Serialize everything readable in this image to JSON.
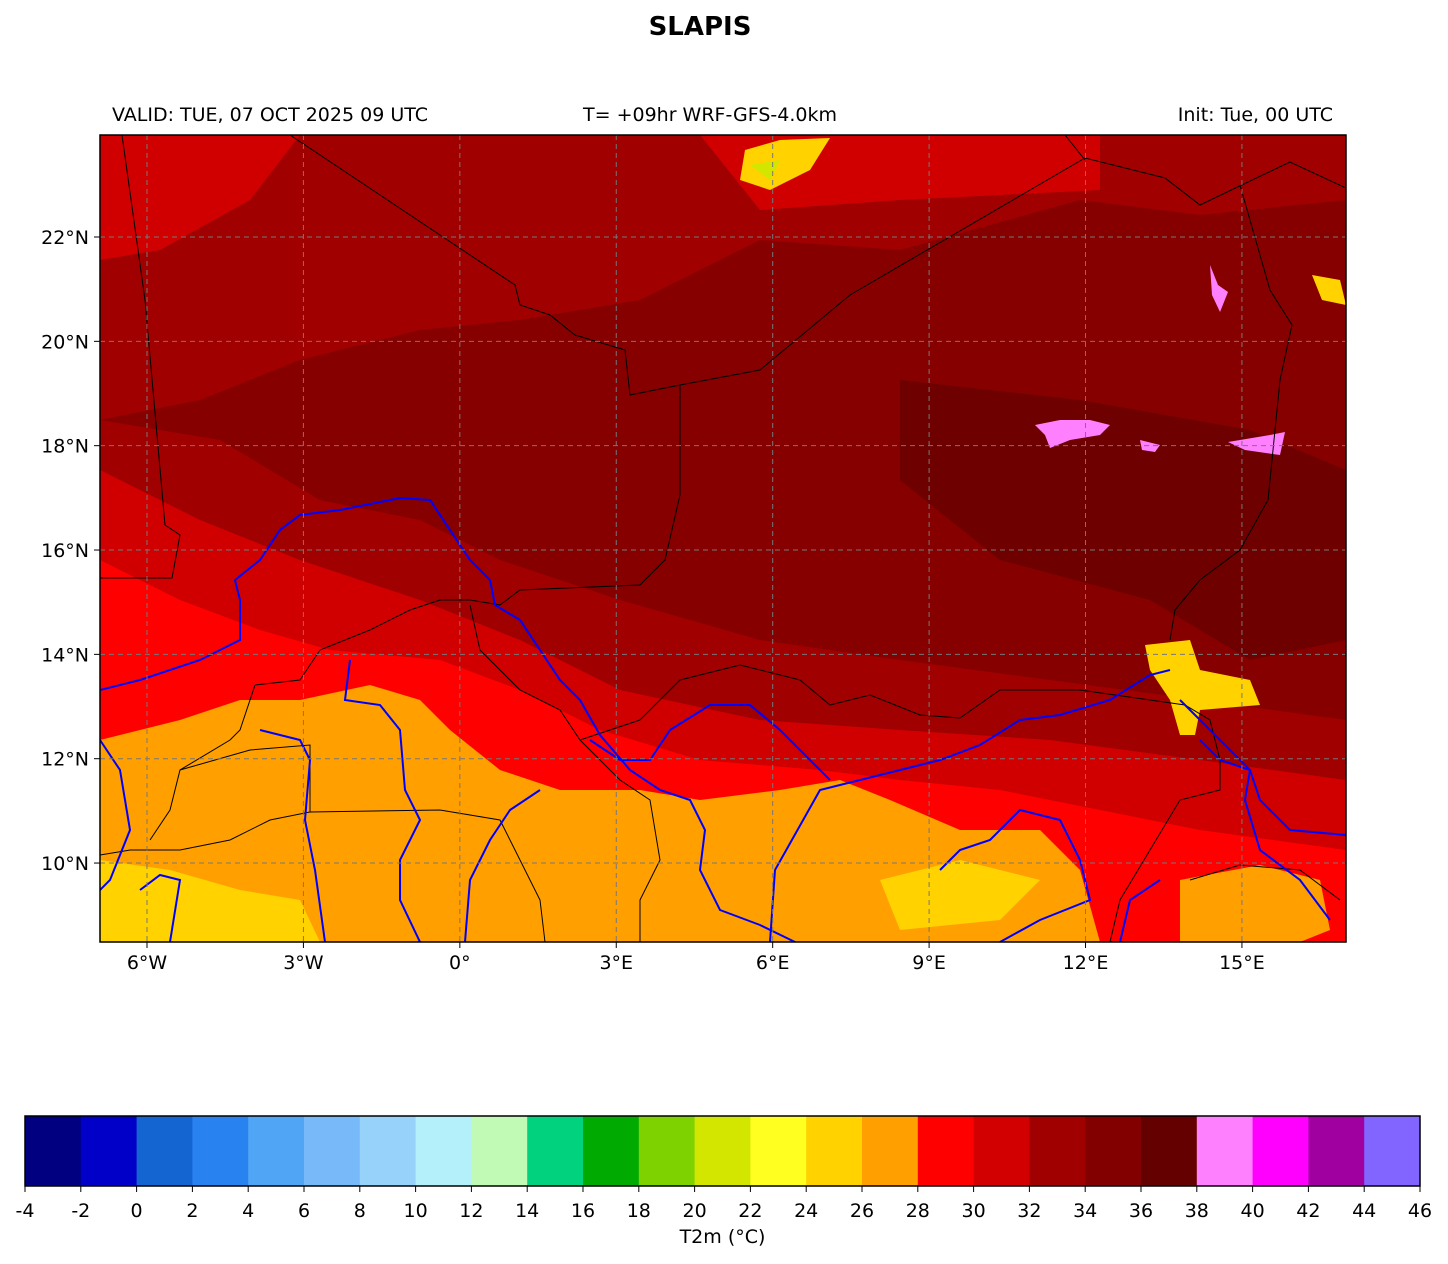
{
  "title": "SLAPIS",
  "header": {
    "valid": "VALID: TUE, 07 OCT 2025 09 UTC",
    "forecast": "T= +09hr WRF-GFS-4.0km",
    "init": "Init: Tue, 00 UTC"
  },
  "map": {
    "variable": "2 m temperature",
    "lon_ticks": [
      {
        "value": -6,
        "label": "6°W"
      },
      {
        "value": -3,
        "label": "3°W"
      },
      {
        "value": 0,
        "label": "0°"
      },
      {
        "value": 3,
        "label": "3°E"
      },
      {
        "value": 6,
        "label": "6°E"
      },
      {
        "value": 9,
        "label": "9°E"
      },
      {
        "value": 12,
        "label": "12°E"
      },
      {
        "value": 15,
        "label": "15°E"
      }
    ],
    "lat_ticks": [
      {
        "value": 22,
        "label": "22°N"
      },
      {
        "value": 20,
        "label": "20°N"
      },
      {
        "value": 18,
        "label": "18°N"
      },
      {
        "value": 16,
        "label": "16°N"
      },
      {
        "value": 14,
        "label": "14°N"
      },
      {
        "value": 12,
        "label": "12°N"
      },
      {
        "value": 10,
        "label": "10°N"
      }
    ],
    "extent": {
      "lon": [
        -6.9,
        17.0
      ],
      "lat": [
        8.5,
        24.0
      ]
    },
    "gridlines": true,
    "border_color": "#000000",
    "river_color": "#0000ff"
  },
  "colorbar": {
    "label": "T2m (°C)",
    "levels": [
      -4,
      -2,
      0,
      2,
      4,
      6,
      8,
      10,
      12,
      14,
      16,
      18,
      20,
      22,
      24,
      26,
      28,
      30,
      32,
      34,
      36,
      38,
      40,
      42,
      44,
      46
    ],
    "colors": [
      "#000080",
      "#0000c8",
      "#1464d2",
      "#2882f0",
      "#50a5f5",
      "#78b9fa",
      "#96d2fa",
      "#b4f0fa",
      "#c0fab4",
      "#00d27d",
      "#00aa00",
      "#7dd200",
      "#d2e600",
      "#ffff20",
      "#ffd200",
      "#ffa000",
      "#ff0000",
      "#d20000",
      "#a00000",
      "#820000",
      "#640000",
      "#ff80ff",
      "#ff00ff",
      "#a000a0",
      "#8264ff"
    ]
  }
}
